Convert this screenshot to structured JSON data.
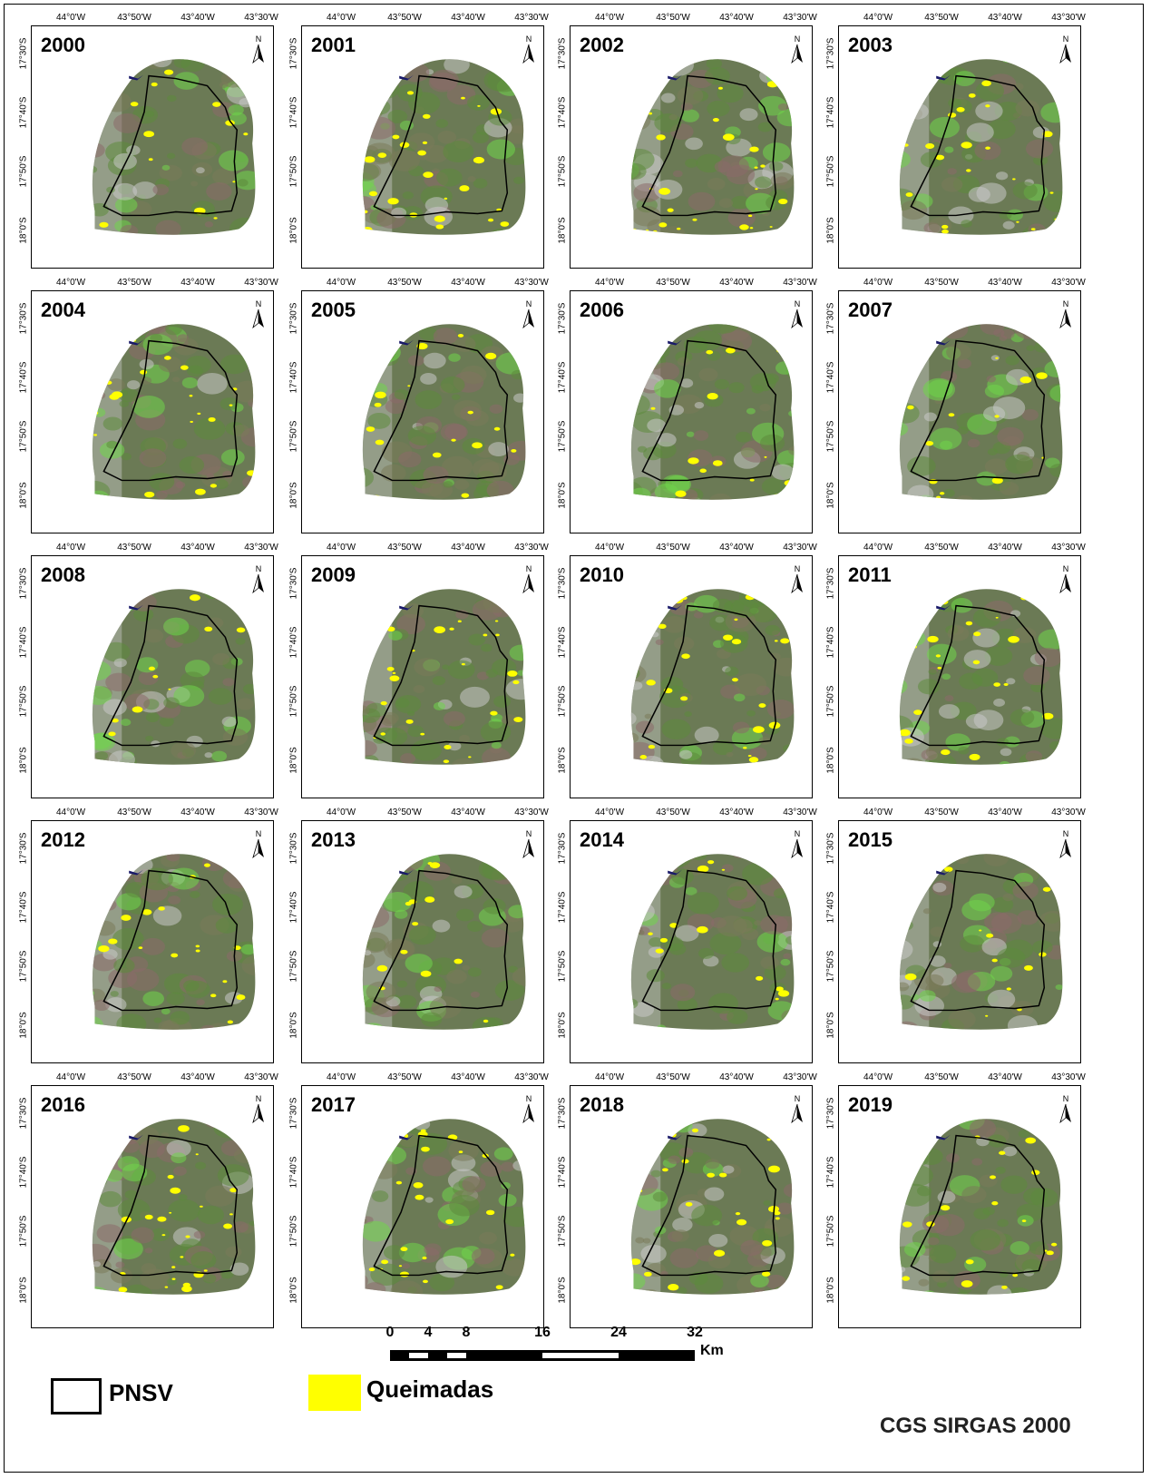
{
  "panels": [
    {
      "year": "2000"
    },
    {
      "year": "2001"
    },
    {
      "year": "2002"
    },
    {
      "year": "2003"
    },
    {
      "year": "2004"
    },
    {
      "year": "2005"
    },
    {
      "year": "2006"
    },
    {
      "year": "2007"
    },
    {
      "year": "2008"
    },
    {
      "year": "2009"
    },
    {
      "year": "2010"
    },
    {
      "year": "2011"
    },
    {
      "year": "2012"
    },
    {
      "year": "2013"
    },
    {
      "year": "2014"
    },
    {
      "year": "2015"
    },
    {
      "year": "2016"
    },
    {
      "year": "2017"
    },
    {
      "year": "2018"
    },
    {
      "year": "2019"
    }
  ],
  "graticule": {
    "longitudes": [
      "44°0'W",
      "43°50'W",
      "43°40'W",
      "43°30'W"
    ],
    "latitudes": [
      "17°30'S",
      "17°40'S",
      "17°50'S",
      "18°0'S"
    ]
  },
  "north_arrow_label": "N",
  "scale_bar": {
    "ticks": [
      "0",
      "4",
      "8",
      "16",
      "24",
      "32"
    ],
    "unit": "Km"
  },
  "legend": {
    "pnsv_label": "PNSV",
    "queimadas_label": "Queimadas",
    "queimadas_color": "#ffff00"
  },
  "crs_label": "CGS SIRGAS 2000",
  "colors": {
    "vegetation": "#5c8a3c",
    "vegetation_bright": "#6fd64a",
    "bare_soil": "#8a6a6a",
    "urban": "#c8c8c8",
    "burned": "#ffff00",
    "water": "#1a1a6a",
    "boundary": "#000000"
  }
}
